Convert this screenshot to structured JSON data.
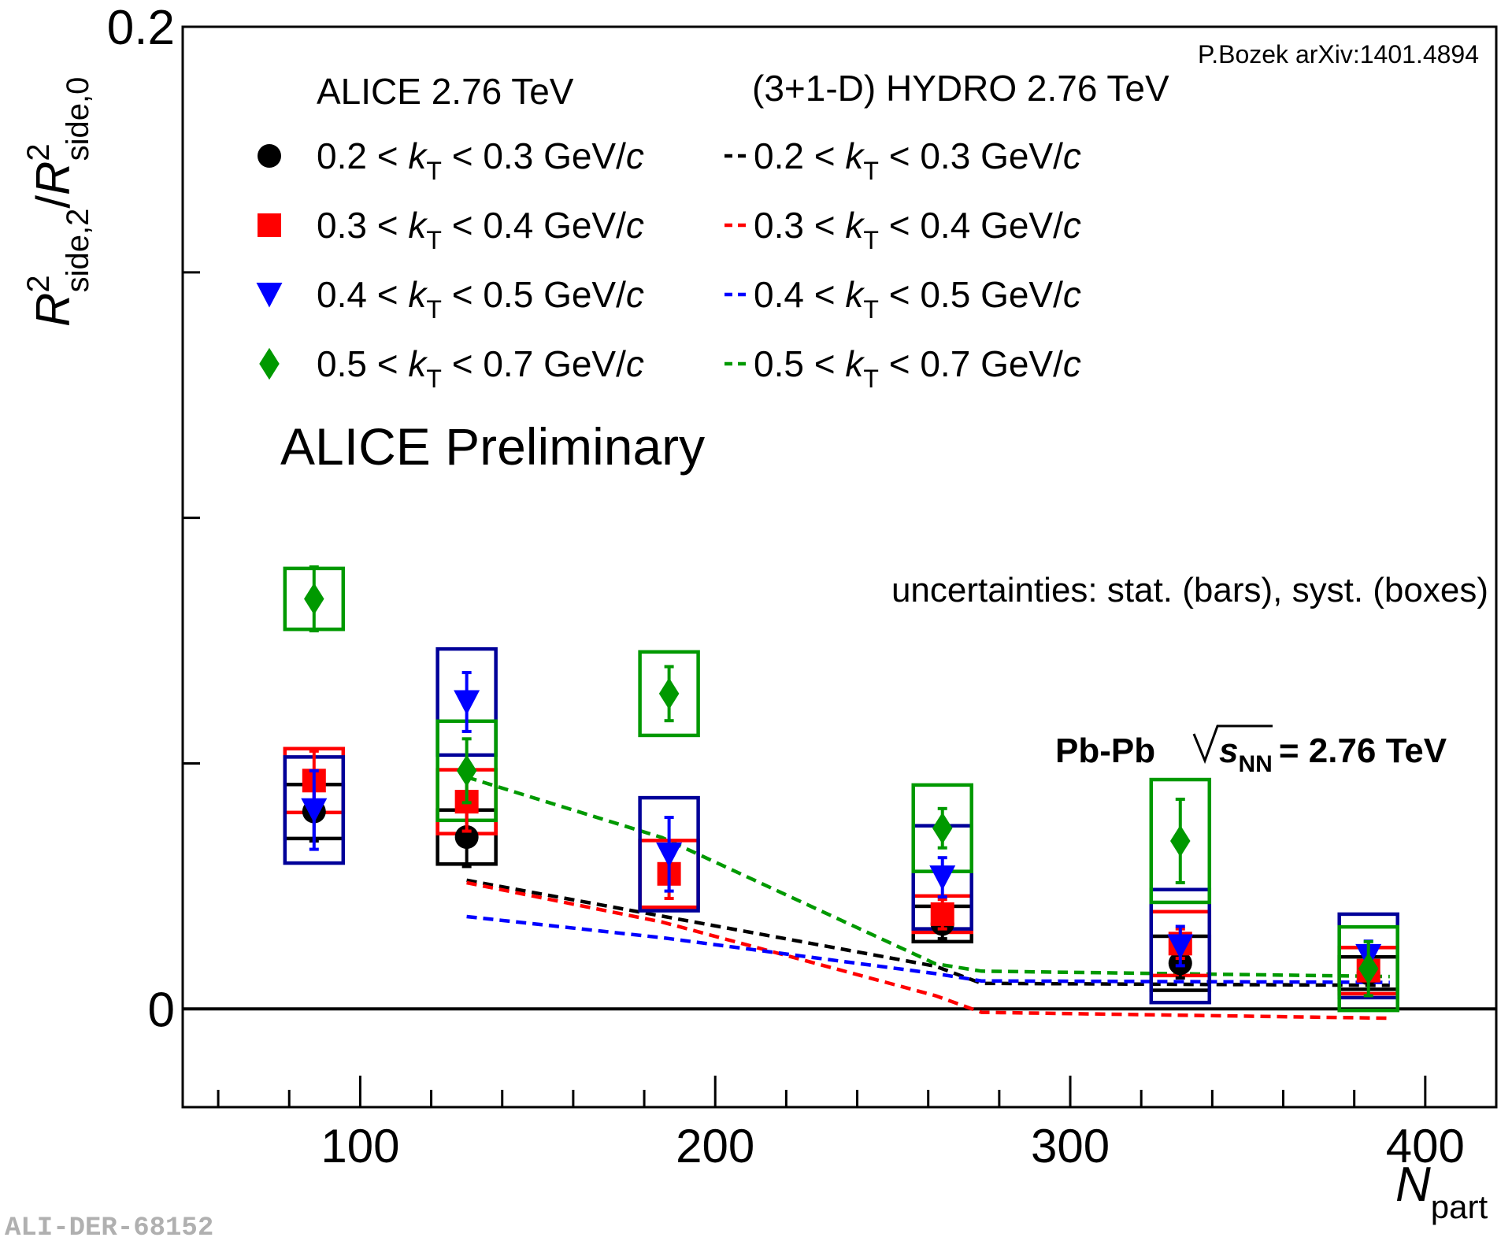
{
  "chart_data": {
    "type": "scatter",
    "title": "",
    "xlabel": {
      "main": "N",
      "sub": "part"
    },
    "ylabel": {
      "num_main": "R",
      "num_sup": "2",
      "num_sub": "side,2",
      "slash": "/",
      "den_main": "R",
      "den_sup": "2",
      "den_sub": "side,0"
    },
    "xlim": [
      50,
      420
    ],
    "ylim": [
      -0.02,
      0.2
    ],
    "x_ticks": [
      100,
      200,
      300,
      400
    ],
    "y_tick_labels": [
      "0",
      "0.2"
    ],
    "y_tick_values": [
      0,
      0.2
    ],
    "y_minor_values": [
      0.05,
      0.1,
      0.15
    ],
    "zero_line": true,
    "texts": {
      "citation": "P.Bozek arXiv:1401.4894",
      "data_header": "ALICE 2.76 TeV",
      "model_header": "(3+1-D) HYDRO 2.76 TeV",
      "preliminary": "ALICE Preliminary",
      "uncertainties": "uncertainties: stat. (bars), syst. (boxes)",
      "system": "Pb-Pb",
      "energy_sym": "s",
      "energy_sub": "NN",
      "energy_value": "= 2.76 TeV",
      "figure_id": "ALI-DER-68152"
    },
    "series": [
      {
        "name": "0.2 < kT < 0.3 GeV/c",
        "kt_low": "0.2",
        "kt_high": "0.3",
        "unit": "GeV/",
        "unit_c": "c",
        "marker": "circle",
        "color": "#000000",
        "box_color": "#000000",
        "points": [
          {
            "x": 87,
            "y": 0.0402,
            "stat": 0.006,
            "syst": 0.0055
          },
          {
            "x": 130,
            "y": 0.035,
            "stat": 0.006,
            "syst": 0.0055
          },
          {
            "x": 264,
            "y": 0.0173,
            "stat": 0.003,
            "syst": 0.0036
          },
          {
            "x": 331,
            "y": 0.0093,
            "stat": 0.003,
            "syst": 0.0055
          },
          {
            "x": 384,
            "y": 0.0073,
            "stat": 0.002,
            "syst": 0.0033
          }
        ],
        "model": {
          "x": [
            130,
            185,
            262,
            275,
            390
          ],
          "y": [
            0.0262,
            0.0189,
            0.0087,
            0.0052,
            0.0048
          ]
        }
      },
      {
        "name": "0.3 < kT < 0.4 GeV/c",
        "kt_low": "0.3",
        "kt_high": "0.4",
        "unit": "GeV/",
        "unit_c": "c",
        "marker": "square",
        "color": "#ff0000",
        "box_color": "#ff0000",
        "points": [
          {
            "x": 87,
            "y": 0.0465,
            "stat": 0.006,
            "syst": 0.0065
          },
          {
            "x": 130,
            "y": 0.0422,
            "stat": 0.006,
            "syst": 0.0065
          },
          {
            "x": 187,
            "y": 0.0275,
            "stat": 0.005,
            "syst": 0.0068
          },
          {
            "x": 264,
            "y": 0.0193,
            "stat": 0.003,
            "syst": 0.0037
          },
          {
            "x": 331,
            "y": 0.0133,
            "stat": 0.003,
            "syst": 0.0065
          },
          {
            "x": 384,
            "y": 0.0078,
            "stat": 0.002,
            "syst": 0.0047
          }
        ],
        "model": {
          "x": [
            130,
            185,
            262,
            275,
            390
          ],
          "y": [
            0.0257,
            0.0177,
            0.0027,
            -0.0007,
            -0.0019
          ]
        }
      },
      {
        "name": "0.4 < kT < 0.5 GeV/c",
        "kt_low": "0.4",
        "kt_high": "0.5",
        "unit": "GeV/",
        "unit_c": "c",
        "marker": "triangle",
        "color": "#0000ff",
        "box_color": "#000099",
        "points": [
          {
            "x": 87,
            "y": 0.0405,
            "stat": 0.008,
            "syst": 0.0108
          },
          {
            "x": 130,
            "y": 0.0625,
            "stat": 0.006,
            "syst": 0.0108
          },
          {
            "x": 187,
            "y": 0.0315,
            "stat": 0.0075,
            "syst": 0.0115
          },
          {
            "x": 264,
            "y": 0.0268,
            "stat": 0.004,
            "syst": 0.0105
          },
          {
            "x": 331,
            "y": 0.0128,
            "stat": 0.004,
            "syst": 0.0115
          },
          {
            "x": 384,
            "y": 0.0108,
            "stat": 0.003,
            "syst": 0.0085
          }
        ],
        "model": {
          "x": [
            130,
            185,
            262,
            275,
            390
          ],
          "y": [
            0.0188,
            0.0145,
            0.0072,
            0.0057,
            0.0054
          ]
        }
      },
      {
        "name": "0.5 < kT < 0.7 GeV/c",
        "kt_low": "0.5",
        "kt_high": "0.7",
        "unit": "GeV/",
        "unit_c": "c",
        "marker": "diamond",
        "color": "#009900",
        "box_color": "#009900",
        "points": [
          {
            "x": 87,
            "y": 0.0835,
            "stat": 0.0065,
            "syst": 0.0062
          },
          {
            "x": 130,
            "y": 0.0485,
            "stat": 0.0065,
            "syst": 0.0101
          },
          {
            "x": 187,
            "y": 0.0642,
            "stat": 0.0055,
            "syst": 0.0085
          },
          {
            "x": 264,
            "y": 0.0368,
            "stat": 0.004,
            "syst": 0.0088
          },
          {
            "x": 331,
            "y": 0.0342,
            "stat": 0.0085,
            "syst": 0.0125
          },
          {
            "x": 384,
            "y": 0.0082,
            "stat": 0.0055,
            "syst": 0.0085
          }
        ],
        "model": {
          "x": [
            130,
            185,
            262,
            275,
            390
          ],
          "y": [
            0.0472,
            0.0349,
            0.0092,
            0.0077,
            0.0066
          ]
        }
      }
    ]
  }
}
